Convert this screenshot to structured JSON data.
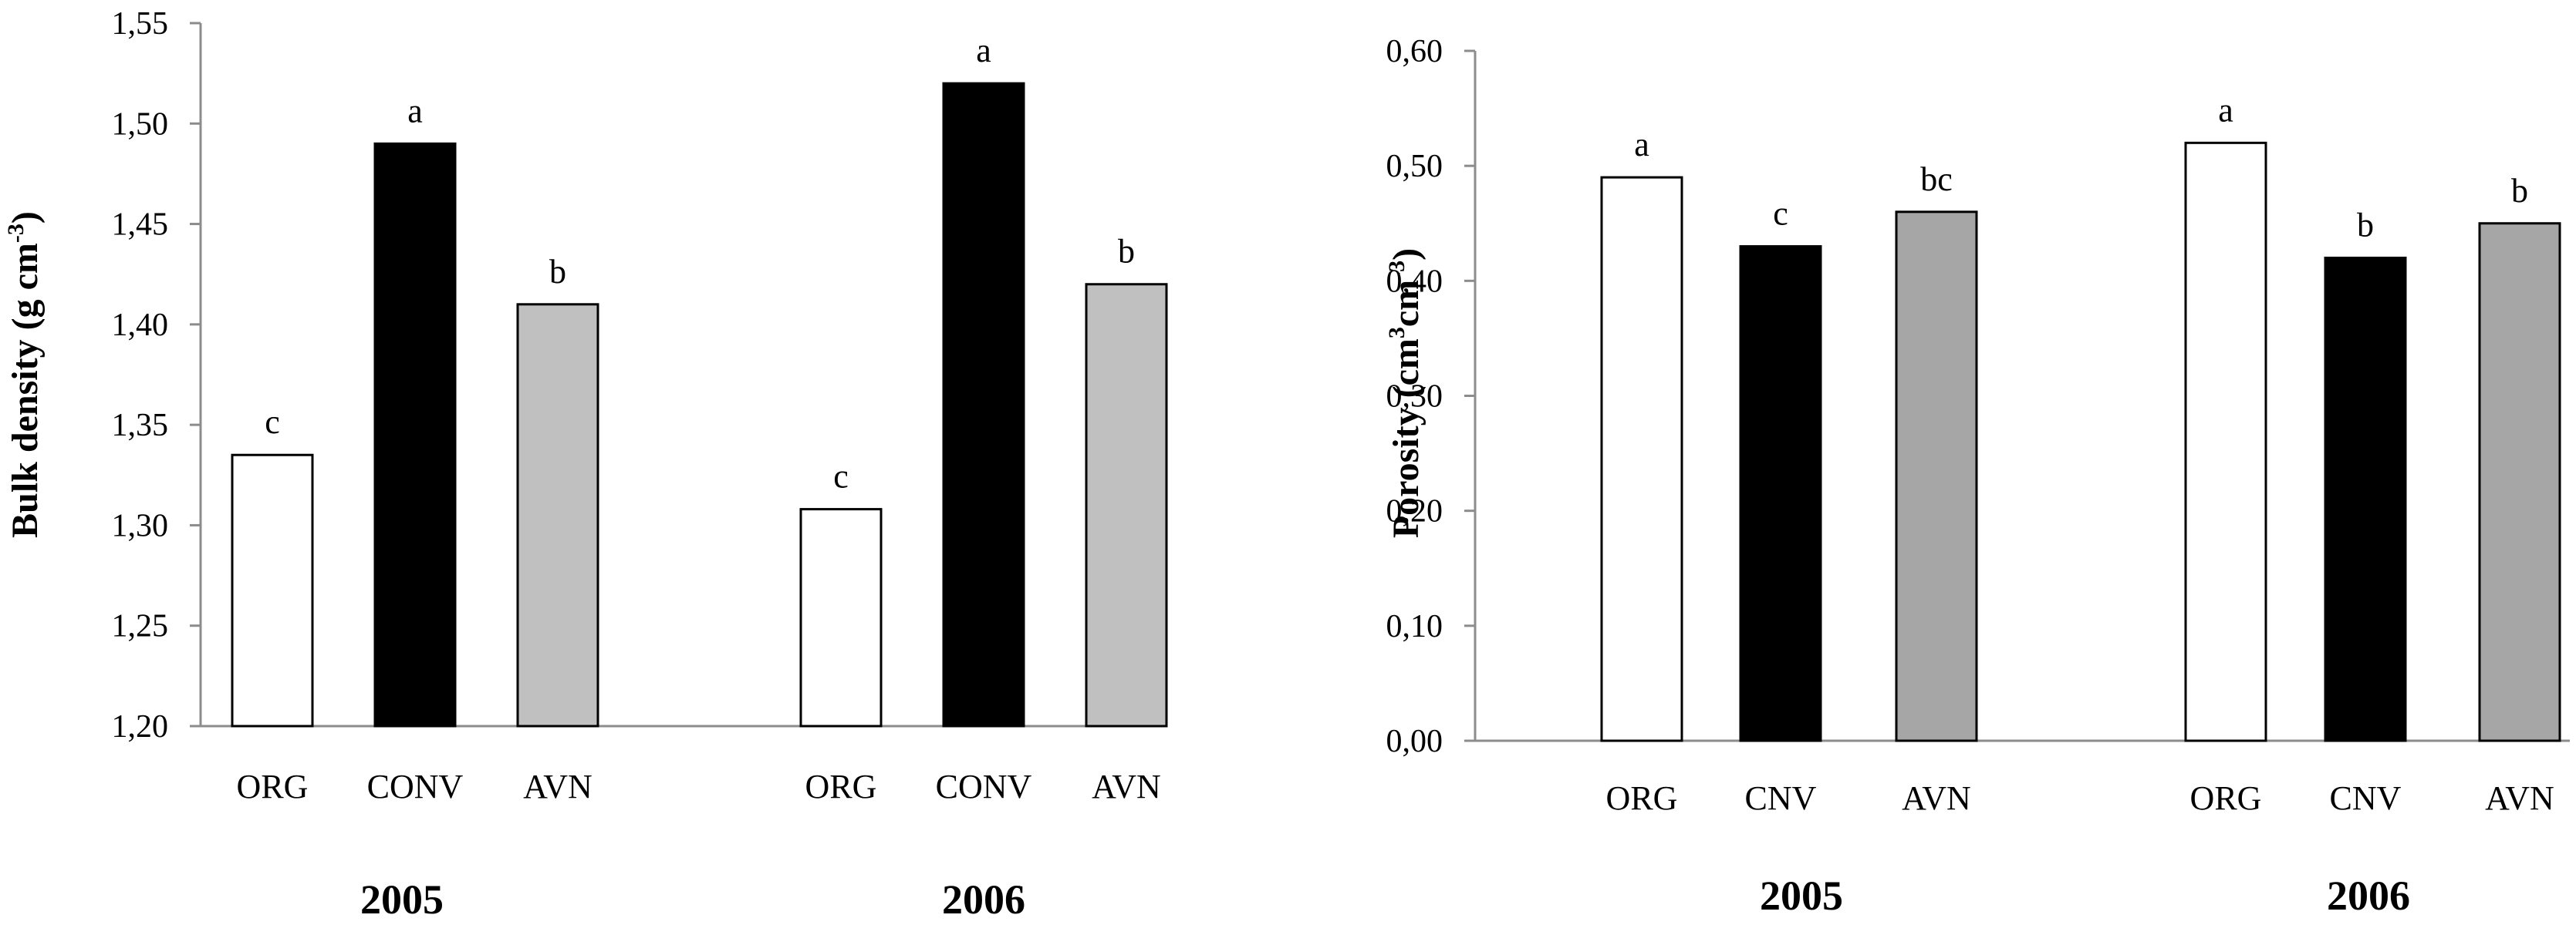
{
  "chart_data": [
    {
      "type": "bar",
      "ylabel": "Bulk density  (g cm",
      "ylabel_unit_superscript": "-3",
      "ylabel_close": ")",
      "ylim": [
        1.2,
        1.55
      ],
      "ytick_values": [
        1.2,
        1.25,
        1.3,
        1.35,
        1.4,
        1.45,
        1.5,
        1.55
      ],
      "ytick_labels": [
        "1,20",
        "1,25",
        "1,30",
        "1,35",
        "1,40",
        "1,45",
        "1,50",
        "1,55"
      ],
      "colors": [
        "#ffffff",
        "#000000",
        "#c0c0c0"
      ],
      "groups": [
        {
          "year": "2005",
          "bars": [
            {
              "category": "ORG",
              "value": 1.335,
              "letter": "c"
            },
            {
              "category": "CONV",
              "value": 1.49,
              "letter": "a"
            },
            {
              "category": "AVN",
              "value": 1.41,
              "letter": "b"
            }
          ]
        },
        {
          "year": "2006",
          "bars": [
            {
              "category": "ORG",
              "value": 1.308,
              "letter": "c"
            },
            {
              "category": "CONV",
              "value": 1.52,
              "letter": "a"
            },
            {
              "category": "AVN",
              "value": 1.42,
              "letter": "b"
            }
          ]
        }
      ]
    },
    {
      "type": "bar",
      "ylabel": "Porosity  (cm",
      "ylabel_unit_superscript": "3",
      "ylabel_mid": "cm",
      "ylabel_unit_superscript2": "-3",
      "ylabel_close": ")",
      "ylim": [
        0.0,
        0.6
      ],
      "ytick_values": [
        0.0,
        0.1,
        0.2,
        0.3,
        0.4,
        0.5,
        0.6
      ],
      "ytick_labels": [
        "0,00",
        "0,10",
        "0,20",
        "0,30",
        "0,40",
        "0,50",
        "0,60"
      ],
      "colors": [
        "#ffffff",
        "#000000",
        "#a6a6a6"
      ],
      "groups": [
        {
          "year": "2005",
          "bars": [
            {
              "category": "ORG",
              "value": 0.49,
              "letter": "a"
            },
            {
              "category": "CNV",
              "value": 0.43,
              "letter": "c"
            },
            {
              "category": "AVN",
              "value": 0.46,
              "letter": "bc"
            }
          ]
        },
        {
          "year": "2006",
          "bars": [
            {
              "category": "ORG",
              "value": 0.52,
              "letter": "a"
            },
            {
              "category": "CNV",
              "value": 0.42,
              "letter": "b"
            },
            {
              "category": "AVN",
              "value": 0.45,
              "letter": "b"
            }
          ]
        }
      ]
    }
  ]
}
